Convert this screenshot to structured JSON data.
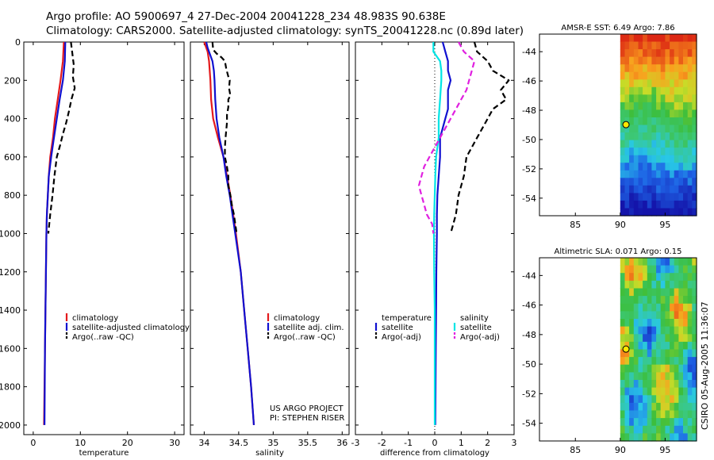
{
  "header": {
    "title_line1": "Argo profile: AO 5900697_4 27-Dec-2004 20041228_234 48.983S 90.638E",
    "title_line2": "Climatology: CARS2000. Satellite-adjusted climatology: synTS_20041228.nc (0.89d later)"
  },
  "colors": {
    "climatology": "#e41a1c",
    "satellite": "#1010d0",
    "argo": "#000000",
    "salinity_satellite": "#00e5e5",
    "salinity_argo": "#e020e0"
  },
  "chart_data": [
    {
      "type": "line",
      "id": "temperature",
      "xlabel": "temperature",
      "ylabel": "",
      "xlim": [
        -2,
        32
      ],
      "ylim": [
        2050,
        0
      ],
      "xticks": [
        0,
        10,
        20,
        30
      ],
      "yticks": [
        0,
        200,
        400,
        600,
        800,
        1000,
        1200,
        1400,
        1600,
        1800,
        2000
      ],
      "series": [
        {
          "name": "climatology",
          "style": "solid",
          "color": "#e41a1c",
          "points": [
            [
              6.5,
              0
            ],
            [
              6.3,
              100
            ],
            [
              5.8,
              200
            ],
            [
              5.2,
              300
            ],
            [
              4.6,
              400
            ],
            [
              4.2,
              500
            ],
            [
              3.6,
              600
            ],
            [
              3.3,
              700
            ],
            [
              3.1,
              800
            ],
            [
              2.9,
              900
            ],
            [
              2.8,
              1000
            ],
            [
              2.7,
              1200
            ],
            [
              2.6,
              1400
            ],
            [
              2.5,
              1600
            ],
            [
              2.4,
              1800
            ],
            [
              2.3,
              2000
            ]
          ]
        },
        {
          "name": "satellite-adjusted climatology",
          "style": "solid",
          "color": "#1010d0",
          "points": [
            [
              6.8,
              0
            ],
            [
              6.7,
              100
            ],
            [
              6.3,
              200
            ],
            [
              5.6,
              300
            ],
            [
              5.0,
              400
            ],
            [
              4.4,
              500
            ],
            [
              3.8,
              600
            ],
            [
              3.3,
              700
            ],
            [
              3.1,
              800
            ],
            [
              2.9,
              900
            ],
            [
              2.8,
              1000
            ],
            [
              2.7,
              1200
            ],
            [
              2.6,
              1400
            ],
            [
              2.5,
              1600
            ],
            [
              2.45,
              1800
            ],
            [
              2.4,
              2000
            ]
          ]
        },
        {
          "name": "Argo(..raw -QC)",
          "style": "dashed",
          "color": "#000000",
          "points": [
            [
              8.0,
              0
            ],
            [
              8.3,
              60
            ],
            [
              8.6,
              120
            ],
            [
              8.4,
              180
            ],
            [
              8.8,
              240
            ],
            [
              8.1,
              300
            ],
            [
              7.6,
              360
            ],
            [
              7.0,
              420
            ],
            [
              6.3,
              480
            ],
            [
              5.7,
              540
            ],
            [
              5.0,
              600
            ],
            [
              4.5,
              700
            ],
            [
              4.1,
              800
            ],
            [
              3.6,
              900
            ],
            [
              3.2,
              1000
            ]
          ]
        }
      ],
      "legend": {
        "position": "center-right",
        "entries": [
          "climatology",
          "satellite-adjusted climatology",
          "Argo(..raw -QC)"
        ]
      }
    },
    {
      "type": "line",
      "id": "salinity",
      "xlabel": "salinity",
      "ylabel": "",
      "xlim": [
        33.8,
        36.1
      ],
      "ylim": [
        2050,
        0
      ],
      "xticks": [
        34,
        34.5,
        35,
        35.5,
        36
      ],
      "xtick_labels": [
        "34",
        "34.5",
        "35",
        "35.5",
        "36"
      ],
      "series": [
        {
          "name": "climatology",
          "style": "solid",
          "color": "#e41a1c",
          "points": [
            [
              34.0,
              0
            ],
            [
              34.05,
              50
            ],
            [
              34.07,
              100
            ],
            [
              34.09,
              200
            ],
            [
              34.1,
              300
            ],
            [
              34.13,
              400
            ],
            [
              34.2,
              500
            ],
            [
              34.28,
              600
            ],
            [
              34.33,
              700
            ],
            [
              34.38,
              800
            ],
            [
              34.42,
              900
            ],
            [
              34.46,
              1000
            ],
            [
              34.53,
              1200
            ],
            [
              34.58,
              1400
            ],
            [
              34.63,
              1600
            ],
            [
              34.68,
              1800
            ],
            [
              34.72,
              2000
            ]
          ]
        },
        {
          "name": "satellite adj. clim.",
          "style": "solid",
          "color": "#1010d0",
          "points": [
            [
              34.03,
              0
            ],
            [
              34.05,
              30
            ],
            [
              34.08,
              60
            ],
            [
              34.12,
              100
            ],
            [
              34.14,
              150
            ],
            [
              34.15,
              200
            ],
            [
              34.16,
              300
            ],
            [
              34.18,
              400
            ],
            [
              34.22,
              500
            ],
            [
              34.28,
              600
            ],
            [
              34.32,
              700
            ],
            [
              34.37,
              800
            ],
            [
              34.41,
              900
            ],
            [
              34.45,
              1000
            ],
            [
              34.53,
              1200
            ],
            [
              34.58,
              1400
            ],
            [
              34.63,
              1600
            ],
            [
              34.68,
              1800
            ],
            [
              34.72,
              2000
            ]
          ]
        },
        {
          "name": "Argo(..raw -QC)",
          "style": "dashed",
          "color": "#000000",
          "points": [
            [
              34.12,
              0
            ],
            [
              34.13,
              40
            ],
            [
              34.18,
              60
            ],
            [
              34.25,
              80
            ],
            [
              34.3,
              100
            ],
            [
              34.32,
              140
            ],
            [
              34.35,
              180
            ],
            [
              34.37,
              200
            ],
            [
              34.36,
              240
            ],
            [
              34.38,
              280
            ],
            [
              34.35,
              300
            ],
            [
              34.35,
              340
            ],
            [
              34.33,
              380
            ],
            [
              34.33,
              420
            ],
            [
              34.32,
              460
            ],
            [
              34.31,
              500
            ],
            [
              34.3,
              550
            ],
            [
              34.3,
              600
            ],
            [
              34.33,
              650
            ],
            [
              34.35,
              700
            ],
            [
              34.35,
              750
            ],
            [
              34.38,
              800
            ],
            [
              34.4,
              850
            ],
            [
              34.43,
              900
            ],
            [
              34.47,
              1000
            ]
          ]
        }
      ],
      "legend": {
        "position": "center-right",
        "entries": [
          "climatology",
          "satellite adj. clim.",
          "Argo(..raw -QC)"
        ]
      },
      "annotations": [
        "US ARGO PROJECT",
        "PI: STEPHEN RISER"
      ]
    },
    {
      "type": "line",
      "id": "difference",
      "xlabel": "difference from climatology",
      "ylabel": "",
      "xlim": [
        -3,
        3
      ],
      "ylim": [
        2050,
        0
      ],
      "xticks": [
        -3,
        -2,
        -1,
        0,
        1,
        2,
        3
      ],
      "reference_line_x": 0,
      "series": [
        {
          "name": "temperature satellite",
          "style": "solid",
          "color": "#1010d0",
          "points": [
            [
              0.3,
              0
            ],
            [
              0.4,
              50
            ],
            [
              0.5,
              100
            ],
            [
              0.5,
              150
            ],
            [
              0.6,
              200
            ],
            [
              0.5,
              250
            ],
            [
              0.5,
              300
            ],
            [
              0.5,
              350
            ],
            [
              0.4,
              400
            ],
            [
              0.3,
              450
            ],
            [
              0.2,
              500
            ],
            [
              0.2,
              600
            ],
            [
              0.15,
              700
            ],
            [
              0.1,
              800
            ],
            [
              0.08,
              900
            ],
            [
              0.08,
              1000
            ],
            [
              0.06,
              1200
            ],
            [
              0.05,
              1400
            ],
            [
              0.04,
              1600
            ],
            [
              0.03,
              1800
            ],
            [
              0.02,
              2000
            ]
          ]
        },
        {
          "name": "temperature Argo(-adj)",
          "style": "dashed",
          "color": "#000000",
          "points": [
            [
              1.5,
              0
            ],
            [
              1.6,
              50
            ],
            [
              2.0,
              100
            ],
            [
              2.2,
              150
            ],
            [
              2.8,
              200
            ],
            [
              2.5,
              250
            ],
            [
              2.7,
              300
            ],
            [
              2.2,
              350
            ],
            [
              2.0,
              400
            ],
            [
              1.8,
              450
            ],
            [
              1.6,
              500
            ],
            [
              1.4,
              550
            ],
            [
              1.2,
              600
            ],
            [
              1.1,
              700
            ],
            [
              0.9,
              800
            ],
            [
              0.8,
              900
            ],
            [
              0.6,
              1000
            ]
          ]
        },
        {
          "name": "salinity satellite",
          "style": "solid",
          "color": "#00e5e5",
          "points": [
            [
              -0.05,
              0
            ],
            [
              -0.05,
              50
            ],
            [
              0.2,
              100
            ],
            [
              0.25,
              150
            ],
            [
              0.25,
              200
            ],
            [
              0.2,
              300
            ],
            [
              0.15,
              400
            ],
            [
              0.15,
              500
            ],
            [
              0.05,
              600
            ],
            [
              0.02,
              700
            ],
            [
              0.0,
              800
            ],
            [
              -0.02,
              900
            ],
            [
              -0.03,
              1000
            ],
            [
              -0.02,
              1200
            ],
            [
              0.0,
              1400
            ],
            [
              0.0,
              1600
            ],
            [
              0.0,
              1800
            ],
            [
              0.0,
              2000
            ]
          ]
        },
        {
          "name": "salinity Argo(-adj)",
          "style": "dashed",
          "color": "#e020e0",
          "points": [
            [
              0.9,
              0
            ],
            [
              1.1,
              50
            ],
            [
              1.5,
              100
            ],
            [
              1.4,
              150
            ],
            [
              1.3,
              200
            ],
            [
              1.2,
              250
            ],
            [
              1.0,
              300
            ],
            [
              0.8,
              350
            ],
            [
              0.6,
              400
            ],
            [
              0.4,
              450
            ],
            [
              0.2,
              500
            ],
            [
              0.0,
              550
            ],
            [
              -0.2,
              600
            ],
            [
              -0.4,
              650
            ],
            [
              -0.5,
              700
            ],
            [
              -0.6,
              750
            ],
            [
              -0.5,
              800
            ],
            [
              -0.4,
              850
            ],
            [
              -0.3,
              900
            ],
            [
              -0.1,
              950
            ],
            [
              -0.05,
              1000
            ]
          ]
        }
      ],
      "legend": {
        "position": "center",
        "columns": [
          {
            "heading": "temperature",
            "entries": [
              "satellite",
              "Argo(-adj)"
            ]
          },
          {
            "heading": "salinity",
            "entries": [
              "satellite",
              "Argo(-adj)"
            ]
          }
        ]
      }
    },
    {
      "type": "heatmap",
      "id": "sst_map",
      "title": "AMSR-E SST: 6.49 Argo: 7.86",
      "xlim": [
        81,
        98.5
      ],
      "ylim": [
        -55.2,
        -42.8
      ],
      "xticks": [
        85,
        90,
        95
      ],
      "yticks": [
        -44,
        -46,
        -48,
        -50,
        -52,
        -54
      ],
      "data_extent_lon": [
        90,
        98.5
      ],
      "profile_location": {
        "lon": 90.638,
        "lat": -48.983
      }
    },
    {
      "type": "heatmap",
      "id": "sla_map",
      "title": "Altimetric SLA: 0.071 Argo: 0.15",
      "xlim": [
        81,
        98.5
      ],
      "ylim": [
        -55.2,
        -42.8
      ],
      "xticks": [
        85,
        90,
        95
      ],
      "yticks": [
        -44,
        -46,
        -48,
        -50,
        -52,
        -54
      ],
      "data_extent_lon": [
        90,
        98.5
      ],
      "profile_location": {
        "lon": 90.638,
        "lat": -48.983
      }
    }
  ],
  "footer": {
    "credit": "CSIRO 05-Aug-2005 11:36:07"
  }
}
